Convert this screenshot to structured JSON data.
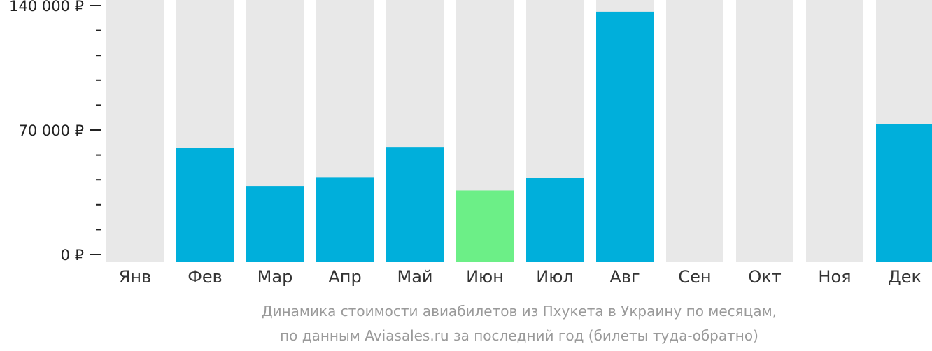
{
  "chart_data": {
    "type": "bar",
    "categories": [
      "Янв",
      "Фев",
      "Мар",
      "Апр",
      "Май",
      "Июн",
      "Июл",
      "Авг",
      "Сен",
      "Окт",
      "Ноя",
      "Дек"
    ],
    "values": [
      null,
      60000,
      38500,
      43500,
      60500,
      36000,
      43000,
      136500,
      null,
      null,
      null,
      73500
    ],
    "highlight_index": 5,
    "ylim": [
      0,
      140000
    ],
    "y_ticks": [
      {
        "value": 0,
        "label": "0 ₽"
      },
      {
        "value": 70000,
        "label": "70 000 ₽"
      },
      {
        "value": 140000,
        "label": "140 000 ₽"
      }
    ],
    "y_minor_tick_step": 14000,
    "colors": {
      "bar": "#00afdb",
      "highlight": "#6cef87",
      "background_column": "#e8e8e8"
    },
    "caption": [
      "Динамика стоимости авиабилетов из Пхукета в Украину по месяцам,",
      "по данным Aviasales.ru за последний год (билеты туда-обратно)"
    ],
    "grid": false,
    "legend": "none"
  }
}
